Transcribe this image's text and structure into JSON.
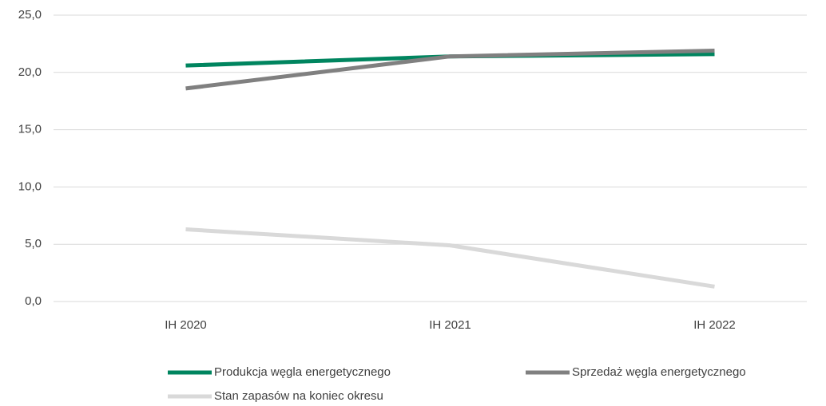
{
  "chart_data": {
    "type": "line",
    "categories": [
      "IH 2020",
      "IH 2021",
      "IH 2022"
    ],
    "series": [
      {
        "name": "Produkcja węgla energetycznego",
        "color": "#00855f",
        "values": [
          20.6,
          21.4,
          21.6
        ]
      },
      {
        "name": "Sprzedaż węgla energetycznego",
        "color": "#808080",
        "values": [
          18.6,
          21.4,
          21.9
        ]
      },
      {
        "name": "Stan zapasów na koniec okresu",
        "color": "#d9d9d9",
        "values": [
          6.3,
          4.9,
          1.3
        ]
      }
    ],
    "ylim": [
      0,
      25
    ],
    "yticks": [
      {
        "value": 0,
        "label": "0,0"
      },
      {
        "value": 5,
        "label": "5,0"
      },
      {
        "value": 10,
        "label": "10,0"
      },
      {
        "value": 15,
        "label": "15,0"
      },
      {
        "value": 20,
        "label": "20,0"
      },
      {
        "value": 25,
        "label": "25,0"
      }
    ],
    "grid": true,
    "legend": "bottom"
  }
}
